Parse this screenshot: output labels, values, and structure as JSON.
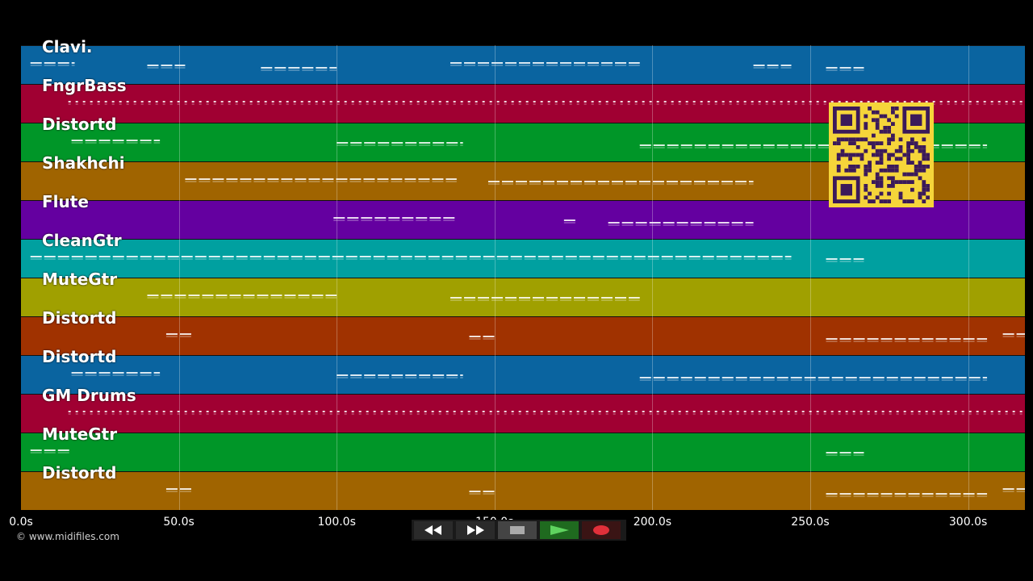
{
  "tracks": [
    {
      "name": "Clavi.",
      "color": "#0a64a0"
    },
    {
      "name": "FngrBass",
      "color": "#a00032"
    },
    {
      "name": "Distortd",
      "color": "#009628"
    },
    {
      "name": "Shakhchi",
      "color": "#a06400"
    },
    {
      "name": "Flute",
      "color": "#6400a0"
    },
    {
      "name": "CleanGtr",
      "color": "#00a0a0"
    },
    {
      "name": "MuteGtr",
      "color": "#a0a000"
    },
    {
      "name": "Distortd",
      "color": "#a03200"
    },
    {
      "name": "Distortd",
      "color": "#0a64a0"
    },
    {
      "name": "GM Drums",
      "color": "#a00032"
    },
    {
      "name": "MuteGtr",
      "color": "#009628"
    },
    {
      "name": "Distortd",
      "color": "#a06400"
    }
  ],
  "time_axis": {
    "max_seconds": 318,
    "ticks": [
      {
        "value": 0,
        "label": "0.0s"
      },
      {
        "value": 50,
        "label": "50.0s"
      },
      {
        "value": 100,
        "label": "100.0s"
      },
      {
        "value": 150,
        "label": "150.0s"
      },
      {
        "value": 200,
        "label": "200.0s"
      },
      {
        "value": 250,
        "label": "250.0s"
      },
      {
        "value": 300,
        "label": "300.0s"
      }
    ]
  },
  "copyright": "© www.midifiles.com",
  "transport": {
    "rewind_icon": "rewind-icon",
    "fast_forward_icon": "fast-forward-icon",
    "stop_icon": "stop-icon",
    "play_icon": "play-icon",
    "record_icon": "record-icon"
  },
  "qr_code_color": "#f5d53a"
}
